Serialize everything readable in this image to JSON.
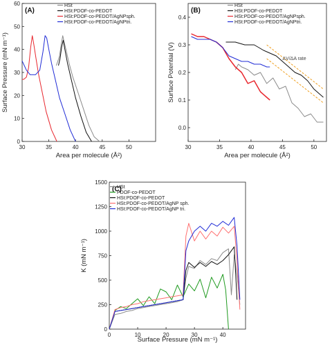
{
  "chart_data": [
    {
      "panel": "(A)",
      "type": "line",
      "xlabel": "Area per molecule (Å²)",
      "ylabel": "Surface Pressure (mN m⁻¹)",
      "xlim": [
        30,
        55
      ],
      "ylim": [
        0,
        60
      ],
      "xticks": [
        30,
        35,
        40,
        45,
        50
      ],
      "yticks": [
        0,
        10,
        20,
        30,
        40,
        50,
        60
      ],
      "legend_position": "top-right",
      "series": [
        {
          "name": "HSt",
          "color": "#8a8a8a",
          "x": [
            44.5,
            43.5,
            42.5,
            41.5,
            40.5,
            39.5,
            38.8,
            38.3,
            37.9,
            37.6,
            37.3,
            37.0,
            36.7,
            36.4
          ],
          "y": [
            0,
            2,
            7,
            14,
            21,
            28,
            34,
            39,
            43,
            46,
            42,
            37,
            35,
            33
          ]
        },
        {
          "name": "HSt:PDOF-co-PEDOT",
          "color": "#111111",
          "x": [
            43.0,
            42.0,
            41.0,
            40.0,
            39.2,
            38.5,
            38.0,
            37.7,
            37.4,
            37.1,
            36.8
          ],
          "y": [
            0,
            4,
            11,
            19,
            27,
            34,
            40,
            44,
            41,
            36,
            33
          ]
        },
        {
          "name": "HSt:PDOF-co-PEDOT/AgNPsph.",
          "color": "#e8262d",
          "x": [
            36.5,
            35.5,
            34.5,
            33.8,
            33.1,
            32.6,
            32.2,
            31.9,
            31.6,
            31.2,
            30.8,
            30.3,
            30.0
          ],
          "y": [
            0,
            5,
            13,
            21,
            29,
            36,
            42,
            46,
            41,
            32,
            28,
            27,
            27
          ]
        },
        {
          "name": "HSt:PDOF-co-PEDOT/AgNPtri.",
          "color": "#1f2bd6",
          "x": [
            40.0,
            39.0,
            38.0,
            37.0,
            36.2,
            35.5,
            35.0,
            34.6,
            34.3,
            33.9,
            33.3,
            32.5,
            31.5,
            30.8,
            30.0
          ],
          "y": [
            0,
            5,
            12,
            19,
            27,
            34,
            40,
            45,
            46,
            39,
            31,
            29,
            29,
            31,
            35
          ]
        }
      ]
    },
    {
      "panel": "(B)",
      "type": "line",
      "xlabel": "Area per molecule (Å²)",
      "ylabel": "Surface Potential (V)",
      "xlim": [
        30,
        52
      ],
      "ylim": [
        -0.05,
        0.45
      ],
      "xticks": [
        30,
        35,
        40,
        45,
        50
      ],
      "yticks": [
        0.0,
        0.1,
        0.2,
        0.3,
        0.4
      ],
      "legend_position": "top-left",
      "annotation": "ΔV/ΔA rate",
      "series": [
        {
          "name": "HSt",
          "color": "#8a8a8a",
          "x": [
            37.5,
            38.0,
            38.5,
            39.5,
            40.5,
            41.5,
            42.5,
            43.5,
            44.5,
            45.5,
            46.5,
            47.5,
            48.5,
            49.5,
            50.5,
            51.5
          ],
          "y": [
            0.21,
            0.23,
            0.22,
            0.21,
            0.19,
            0.2,
            0.16,
            0.18,
            0.14,
            0.15,
            0.09,
            0.07,
            0.04,
            0.05,
            0.02,
            0.02
          ]
        },
        {
          "name": "HSt:PDOF-co-PEDOT",
          "color": "#111111",
          "x": [
            36.0,
            37.5,
            39.0,
            40.5,
            42.0,
            43.0,
            44.0,
            45.0,
            46.0,
            47.0,
            48.0,
            49.0,
            50.0,
            51.0,
            51.5
          ],
          "y": [
            0.31,
            0.31,
            0.3,
            0.3,
            0.28,
            0.27,
            0.26,
            0.24,
            0.22,
            0.2,
            0.19,
            0.17,
            0.14,
            0.12,
            0.11
          ]
        },
        {
          "name": "HSt:PDOF-co-PEDOT/AgNPsph.",
          "color": "#e8262d",
          "x": [
            30.5,
            31.5,
            32.5,
            33.5,
            34.5,
            35.5,
            36.5,
            37.5,
            38.5,
            39.5,
            40.5,
            41.5,
            42.5,
            43.0
          ],
          "y": [
            0.34,
            0.33,
            0.33,
            0.32,
            0.31,
            0.29,
            0.25,
            0.22,
            0.2,
            0.16,
            0.17,
            0.13,
            0.11,
            0.1
          ]
        },
        {
          "name": "HSt:PDOF-co-PEDOT/AgNPtri.",
          "color": "#1f2bd6",
          "x": [
            30.5,
            31.5,
            32.5,
            33.5,
            34.5,
            35.5,
            36.5,
            37.5,
            38.5,
            39.5,
            40.5,
            41.5,
            42.5,
            43.0
          ],
          "y": [
            0.33,
            0.32,
            0.32,
            0.32,
            0.31,
            0.29,
            0.26,
            0.25,
            0.24,
            0.24,
            0.23,
            0.23,
            0.22,
            0.22
          ]
        }
      ]
    },
    {
      "panel": "(C)",
      "type": "line",
      "xlabel": "Surface Pressure (mN m⁻¹)",
      "ylabel": "K (mN m⁻¹)",
      "xlim": [
        0,
        48
      ],
      "ylim": [
        0,
        1500
      ],
      "xticks": [
        0,
        10,
        20,
        30,
        40
      ],
      "yticks": [
        0,
        250,
        500,
        750,
        1000,
        1250,
        1500
      ],
      "legend_position": "top-left",
      "series": [
        {
          "name": "HSt",
          "color": "#8a8a8a",
          "x": [
            0,
            2,
            4,
            6,
            8,
            10,
            12,
            14,
            16,
            18,
            20,
            22,
            24,
            26,
            27,
            28,
            30,
            32,
            34,
            36,
            38,
            40,
            42,
            43,
            44,
            45,
            46
          ],
          "y": [
            0,
            150,
            160,
            180,
            190,
            210,
            220,
            230,
            240,
            250,
            260,
            270,
            280,
            300,
            520,
            640,
            620,
            700,
            660,
            720,
            700,
            780,
            820,
            350,
            760,
            550,
            250
          ]
        },
        {
          "name": "PDOF-co-PEDOT",
          "color": "#1f9a1f",
          "x": [
            0,
            2,
            4,
            6,
            8,
            10,
            12,
            14,
            16,
            18,
            20,
            22,
            24,
            26,
            28,
            30,
            32,
            34,
            36,
            38,
            40,
            41,
            42
          ],
          "y": [
            0,
            190,
            230,
            210,
            260,
            310,
            240,
            330,
            260,
            410,
            380,
            300,
            450,
            330,
            460,
            390,
            510,
            320,
            530,
            420,
            560,
            400,
            0
          ]
        },
        {
          "name": "HSt:PDOF-co-PEDOT",
          "color": "#111111",
          "x": [
            0,
            2,
            4,
            6,
            8,
            10,
            12,
            14,
            16,
            18,
            20,
            22,
            24,
            26,
            27,
            28,
            30,
            32,
            34,
            36,
            38,
            40,
            42,
            44,
            45
          ],
          "y": [
            0,
            180,
            190,
            200,
            210,
            220,
            230,
            240,
            250,
            260,
            270,
            280,
            290,
            300,
            600,
            680,
            630,
            680,
            640,
            690,
            660,
            700,
            760,
            840,
            300
          ]
        },
        {
          "name": "HSt:PDOF-co-PEDOT/AgNP sph.",
          "color": "#ff6f6f",
          "x": [
            0,
            2,
            4,
            6,
            8,
            10,
            12,
            14,
            16,
            18,
            20,
            22,
            24,
            26,
            27,
            28,
            30,
            32,
            34,
            36,
            38,
            40,
            42,
            44,
            45,
            46
          ],
          "y": [
            0,
            200,
            220,
            230,
            250,
            260,
            280,
            290,
            300,
            310,
            320,
            330,
            340,
            350,
            950,
            1080,
            900,
            1000,
            920,
            1000,
            950,
            1040,
            980,
            1050,
            700,
            200
          ]
        },
        {
          "name": "HSt:PDOF-co-PEDOT/AgNP tri.",
          "color": "#1f2bd6",
          "x": [
            0,
            2,
            4,
            6,
            8,
            10,
            12,
            14,
            16,
            18,
            20,
            22,
            24,
            26,
            27,
            28,
            30,
            32,
            34,
            36,
            38,
            40,
            42,
            44,
            45,
            46
          ],
          "y": [
            0,
            180,
            190,
            200,
            210,
            220,
            230,
            240,
            250,
            260,
            270,
            280,
            290,
            300,
            800,
            900,
            1000,
            1050,
            1000,
            1080,
            1050,
            1100,
            1060,
            1140,
            850,
            300
          ]
        }
      ]
    }
  ]
}
